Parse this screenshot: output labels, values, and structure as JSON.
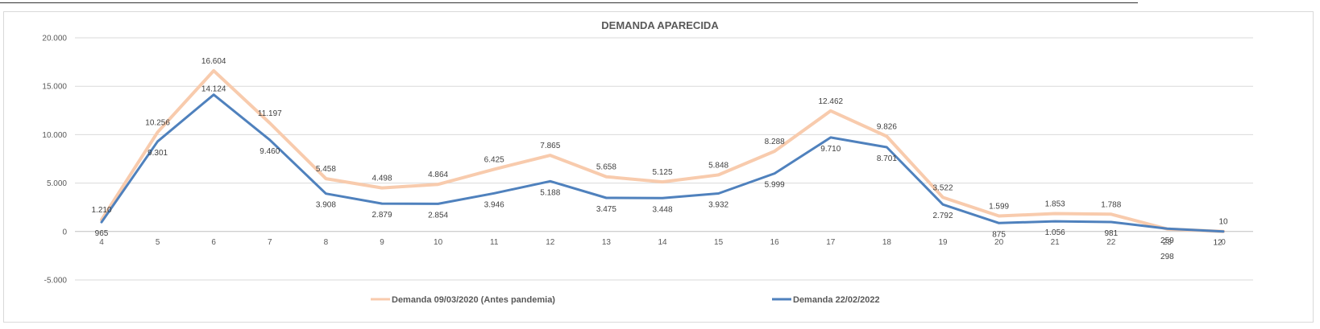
{
  "chart_data": {
    "type": "line",
    "title": "DEMANDA APARECIDA",
    "xlabel": "",
    "ylabel": "",
    "categories": [
      "4",
      "5",
      "6",
      "7",
      "8",
      "9",
      "10",
      "11",
      "12",
      "13",
      "14",
      "15",
      "16",
      "17",
      "18",
      "19",
      "20",
      "21",
      "22",
      "23",
      "0"
    ],
    "ylim": [
      -5000,
      20000
    ],
    "yticks": [
      {
        "value": 20000,
        "label": "20.000"
      },
      {
        "value": 15000,
        "label": "15.000"
      },
      {
        "value": 10000,
        "label": "10.000"
      },
      {
        "value": 5000,
        "label": "5.000"
      },
      {
        "value": 0,
        "label": "0"
      },
      {
        "value": -5000,
        "label": "-5.000"
      }
    ],
    "grid": true,
    "legend_position": "bottom",
    "series": [
      {
        "name": "Demanda 09/03/2020 (Antes pandemia)",
        "color": "#F8CBAD",
        "values": [
          1210,
          10256,
          16604,
          11197,
          5458,
          4498,
          4864,
          6425,
          7865,
          5658,
          5125,
          5848,
          8288,
          12462,
          9826,
          3522,
          1599,
          1853,
          1788,
          259,
          10
        ],
        "labels": [
          "1.210",
          "10.256",
          "16.604",
          "11.197",
          "5.458",
          "4.498",
          "4.864",
          "6.425",
          "7.865",
          "5.658",
          "5.125",
          "5.848",
          "8.288",
          "12.462",
          "9.826",
          "3.522",
          "1.599",
          "1.853",
          "1.788",
          "259",
          "10"
        ]
      },
      {
        "name": "Demanda 22/02/2022",
        "color": "#4F81BD",
        "values": [
          965,
          9301,
          14124,
          9460,
          3908,
          2879,
          2854,
          3946,
          5188,
          3475,
          3448,
          3932,
          5999,
          9710,
          8701,
          2792,
          875,
          1056,
          981,
          298,
          12
        ],
        "labels": [
          "965",
          "9.301",
          "14.124",
          "9.460",
          "3.908",
          "2.879",
          "2.854",
          "3.946",
          "5.188",
          "3.475",
          "3.448",
          "3.932",
          "5.999",
          "9.710",
          "8.701",
          "2.792",
          "875",
          "1.056",
          "981",
          "298",
          "12"
        ]
      }
    ]
  }
}
